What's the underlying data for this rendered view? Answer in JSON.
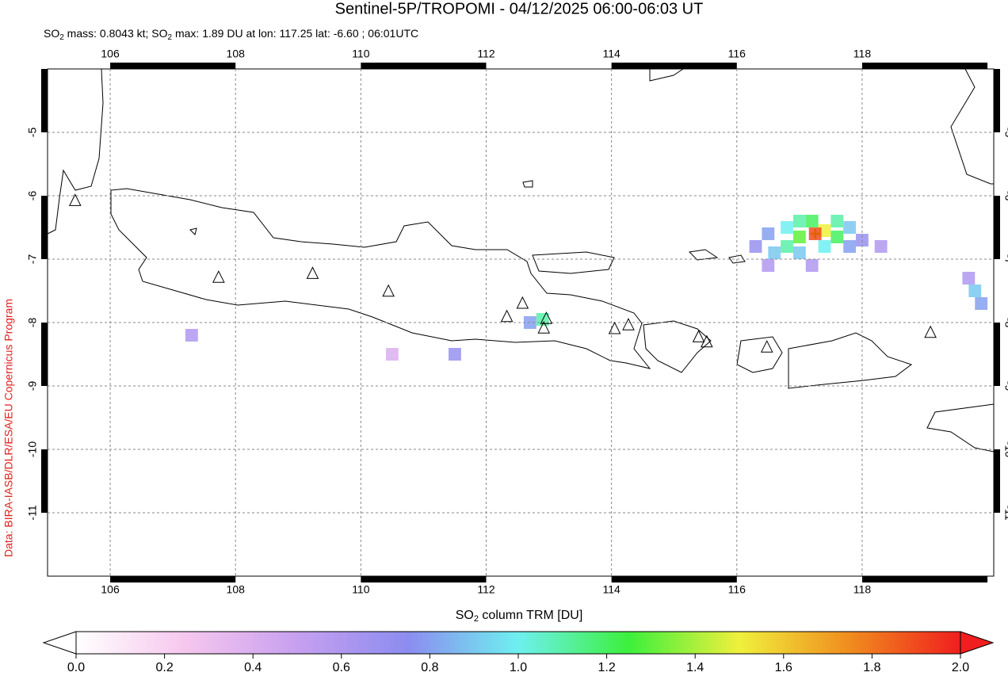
{
  "chart_data": {
    "type": "map",
    "title": "Sentinel-5P/TROPOMI - 04/12/2025 06:00-06:03 UT",
    "subtitle": [
      "SO",
      "2",
      " mass: 0.8043 kt; SO",
      "2",
      " max: 1.89 DU at lon: 117.25 lat: -6.60 ; 06:01UTC"
    ],
    "credit": "Data: BIRA-IASB/DLR/ESA/EU Copernicus Program",
    "xlim": [
      105,
      120.1
    ],
    "ylim": [
      -12,
      -4
    ],
    "xticks": [
      106,
      108,
      110,
      112,
      114,
      116,
      118
    ],
    "yticks": [
      -5,
      -6,
      -7,
      -8,
      -9,
      -10,
      -11
    ],
    "grid": true,
    "colorbar": {
      "label": [
        "SO",
        "2",
        " column TRM [DU]"
      ],
      "clim": [
        0,
        2
      ],
      "ticks": [
        {
          "value": 0,
          "label": "0.0"
        },
        0.2,
        0.4,
        0.6,
        0.8,
        {
          "value": 1,
          "label": "1.0"
        },
        1.2,
        1.4,
        1.6,
        1.8,
        {
          "value": 2,
          "label": "2.0"
        }
      ],
      "colormap": [
        "#ffffff",
        "#f6c6ee",
        "#c7a0f0",
        "#8c8cf0",
        "#6ef0f0",
        "#3cf03c",
        "#f0f03c",
        "#f08c1e",
        "#f01e1e"
      ]
    },
    "volcanoes": [
      {
        "lon": 105.44,
        "lat": -6.08
      },
      {
        "lon": 107.73,
        "lat": -7.29
      },
      {
        "lon": 109.23,
        "lat": -7.23
      },
      {
        "lon": 110.44,
        "lat": -7.51
      },
      {
        "lon": 112.33,
        "lat": -7.91
      },
      {
        "lon": 112.58,
        "lat": -7.7
      },
      {
        "lon": 112.96,
        "lat": -7.94
      },
      {
        "lon": 112.92,
        "lat": -8.09
      },
      {
        "lon": 114.05,
        "lat": -8.1
      },
      {
        "lon": 114.27,
        "lat": -8.04
      },
      {
        "lon": 115.39,
        "lat": -8.23
      },
      {
        "lon": 115.52,
        "lat": -8.31
      },
      {
        "lon": 116.48,
        "lat": -8.39
      },
      {
        "lon": 119.09,
        "lat": -8.16
      }
    ],
    "max_marker": {
      "lon": 117.25,
      "lat": -6.6
    },
    "so2_cells": [
      {
        "lon": 116.3,
        "lat": -6.8,
        "value": 0.7
      },
      {
        "lon": 116.5,
        "lat": -6.6,
        "value": 0.8
      },
      {
        "lon": 116.6,
        "lat": -6.9,
        "value": 0.9
      },
      {
        "lon": 116.8,
        "lat": -6.5,
        "value": 1.0
      },
      {
        "lon": 116.8,
        "lat": -6.8,
        "value": 1.1
      },
      {
        "lon": 117.0,
        "lat": -6.4,
        "value": 1.1
      },
      {
        "lon": 117.0,
        "lat": -6.65,
        "value": 1.3
      },
      {
        "lon": 117.0,
        "lat": -6.9,
        "value": 0.9
      },
      {
        "lon": 117.2,
        "lat": -6.4,
        "value": 1.2
      },
      {
        "lon": 117.4,
        "lat": -6.55,
        "value": 1.5
      },
      {
        "lon": 117.25,
        "lat": -6.6,
        "value": 1.89
      },
      {
        "lon": 117.4,
        "lat": -6.8,
        "value": 1.0
      },
      {
        "lon": 117.6,
        "lat": -6.4,
        "value": 1.1
      },
      {
        "lon": 117.6,
        "lat": -6.65,
        "value": 1.2
      },
      {
        "lon": 117.8,
        "lat": -6.5,
        "value": 0.9
      },
      {
        "lon": 117.8,
        "lat": -6.8,
        "value": 0.8
      },
      {
        "lon": 118.0,
        "lat": -6.7,
        "value": 0.7
      },
      {
        "lon": 118.3,
        "lat": -6.8,
        "value": 0.6
      },
      {
        "lon": 116.5,
        "lat": -7.1,
        "value": 0.6
      },
      {
        "lon": 117.2,
        "lat": -7.1,
        "value": 0.6
      },
      {
        "lon": 119.8,
        "lat": -7.5,
        "value": 0.9
      },
      {
        "lon": 119.9,
        "lat": -7.7,
        "value": 0.8
      },
      {
        "lon": 119.7,
        "lat": -7.3,
        "value": 0.6
      },
      {
        "lon": 112.9,
        "lat": -7.95,
        "value": 1.1
      },
      {
        "lon": 112.7,
        "lat": -8.0,
        "value": 0.8
      },
      {
        "lon": 111.5,
        "lat": -8.5,
        "value": 0.7
      },
      {
        "lon": 107.3,
        "lat": -8.2,
        "value": 0.6
      },
      {
        "lon": 110.5,
        "lat": -8.5,
        "value": 0.4
      }
    ]
  }
}
